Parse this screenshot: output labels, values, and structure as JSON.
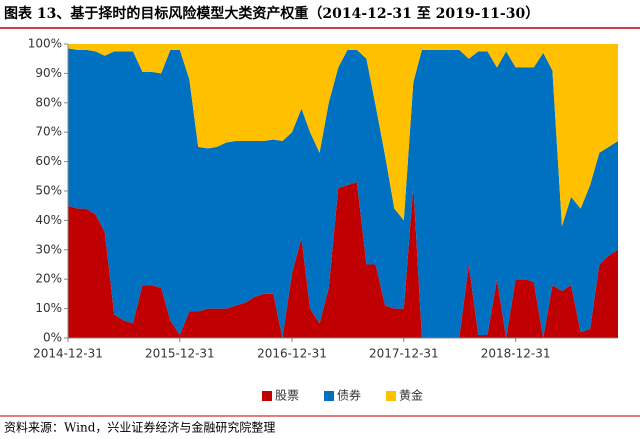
{
  "chart_data": {
    "type": "stacked_area",
    "title": "图表 13、基于择时的目标风险模型大类资产权重（2014-12-31 至 2019-11-30）",
    "source": "资料来源：Wind，兴业证券经济与金融研究院整理",
    "x": [
      "2014-12-31",
      "2015-01-31",
      "2015-02-28",
      "2015-03-31",
      "2015-04-30",
      "2015-05-31",
      "2015-06-30",
      "2015-07-31",
      "2015-08-31",
      "2015-09-30",
      "2015-10-31",
      "2015-11-30",
      "2015-12-31",
      "2016-01-31",
      "2016-02-29",
      "2016-03-31",
      "2016-04-30",
      "2016-05-31",
      "2016-06-30",
      "2016-07-31",
      "2016-08-31",
      "2016-09-30",
      "2016-10-31",
      "2016-11-30",
      "2016-12-31",
      "2017-01-31",
      "2017-02-28",
      "2017-03-31",
      "2017-04-30",
      "2017-05-31",
      "2017-06-30",
      "2017-07-31",
      "2017-08-31",
      "2017-09-30",
      "2017-10-31",
      "2017-11-30",
      "2017-12-31",
      "2018-01-31",
      "2018-02-28",
      "2018-03-31",
      "2018-04-30",
      "2018-05-31",
      "2018-06-30",
      "2018-07-31",
      "2018-08-31",
      "2018-09-30",
      "2018-10-31",
      "2018-11-30",
      "2018-12-31",
      "2019-01-31",
      "2019-02-28",
      "2019-03-31",
      "2019-04-30",
      "2019-05-31",
      "2019-06-30",
      "2019-07-31",
      "2019-08-31",
      "2019-09-30",
      "2019-10-31",
      "2019-11-30"
    ],
    "series": [
      {
        "name": "股票",
        "color": "#c00000",
        "values": [
          45,
          44,
          44,
          42,
          36,
          8,
          6,
          5,
          18,
          18,
          17,
          6,
          1,
          9,
          9,
          10,
          10,
          10,
          11,
          12,
          14,
          15,
          15,
          0,
          22,
          34,
          10,
          5,
          17,
          51,
          52,
          53,
          25,
          25,
          11,
          10,
          10,
          52,
          0,
          0,
          0,
          0,
          0,
          25,
          1,
          1,
          20,
          0,
          20,
          20,
          19,
          0,
          18,
          16,
          18,
          2,
          3,
          25,
          28,
          30
        ]
      },
      {
        "name": "债券",
        "color": "#0070c0",
        "values": [
          53.5,
          54,
          54,
          55.5,
          60,
          89.5,
          91.5,
          92.5,
          72.5,
          72.5,
          73,
          92,
          97,
          79,
          56,
          54.5,
          55,
          56.5,
          56,
          55,
          53,
          52,
          52.5,
          67,
          48,
          44,
          60,
          58,
          63,
          41,
          46,
          45,
          70,
          54,
          51,
          34,
          30,
          35,
          98,
          98,
          98,
          98,
          98,
          70,
          96.5,
          96.5,
          72,
          97.5,
          72,
          72,
          73,
          97,
          73,
          22,
          30,
          42,
          49,
          38,
          37,
          37
        ]
      },
      {
        "name": "黄金",
        "color": "#ffc000",
        "values": [
          1.5,
          2,
          2,
          2.5,
          4,
          2.5,
          2.5,
          2.5,
          9.5,
          9.5,
          10,
          2,
          2,
          12,
          35,
          35.5,
          35,
          33.5,
          33,
          33,
          33,
          33,
          32.5,
          33,
          30,
          22,
          30,
          37,
          20,
          8,
          2,
          2,
          5,
          21,
          38,
          56,
          60,
          13,
          2,
          2,
          2,
          2,
          2,
          5,
          2.5,
          2.5,
          8,
          2.5,
          8,
          8,
          8,
          3,
          9,
          62,
          52,
          56,
          48,
          37,
          35,
          33
        ]
      }
    ],
    "xlim": [
      "2014-12-31",
      "2019-11-30"
    ],
    "xticks": [
      "2014-12-31",
      "2015-12-31",
      "2016-12-31",
      "2017-12-31",
      "2018-12-31"
    ],
    "ylim": [
      0,
      100
    ],
    "yticks": [
      {
        "value": 0,
        "label": "0%"
      },
      {
        "value": 10,
        "label": "10%"
      },
      {
        "value": 20,
        "label": "20%"
      },
      {
        "value": 30,
        "label": "30%"
      },
      {
        "value": 40,
        "label": "40%"
      },
      {
        "value": 50,
        "label": "50%"
      },
      {
        "value": 60,
        "label": "60%"
      },
      {
        "value": 70,
        "label": "70%"
      },
      {
        "value": 80,
        "label": "80%"
      },
      {
        "value": 90,
        "label": "90%"
      },
      {
        "value": 100,
        "label": "100%"
      }
    ],
    "legend": "bottom"
  }
}
